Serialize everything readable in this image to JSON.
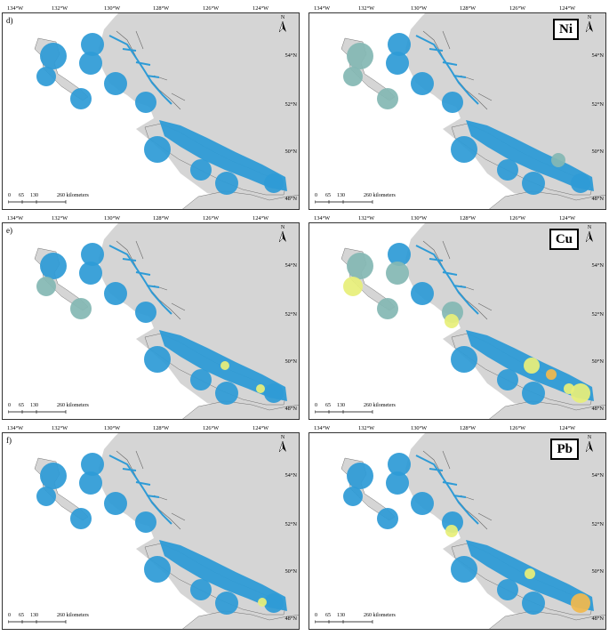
{
  "lon_ticks": [
    "134°W",
    "132°W",
    "130°W",
    "128°W",
    "126°W",
    "124°W"
  ],
  "lat_ticks": [
    "54°N",
    "52°N",
    "50°N",
    "48°N"
  ],
  "north_label": "N",
  "scale": {
    "z": "0",
    "a": "65",
    "b": "130",
    "c": "260 kilometers"
  },
  "colors": {
    "land": "#d5d5d5",
    "blue": "#2e9bd6",
    "teal": "#84b8b4",
    "yellow": "#e7ef7a",
    "orange": "#f1b94d"
  },
  "panels": [
    {
      "letter": "d)",
      "metal": ""
    },
    {
      "letter": "",
      "metal": "Ni"
    },
    {
      "letter": "e)",
      "metal": ""
    },
    {
      "letter": "",
      "metal": "Cu"
    },
    {
      "letter": "f)",
      "metal": ""
    },
    {
      "letter": "",
      "metal": "Pb"
    }
  ]
}
